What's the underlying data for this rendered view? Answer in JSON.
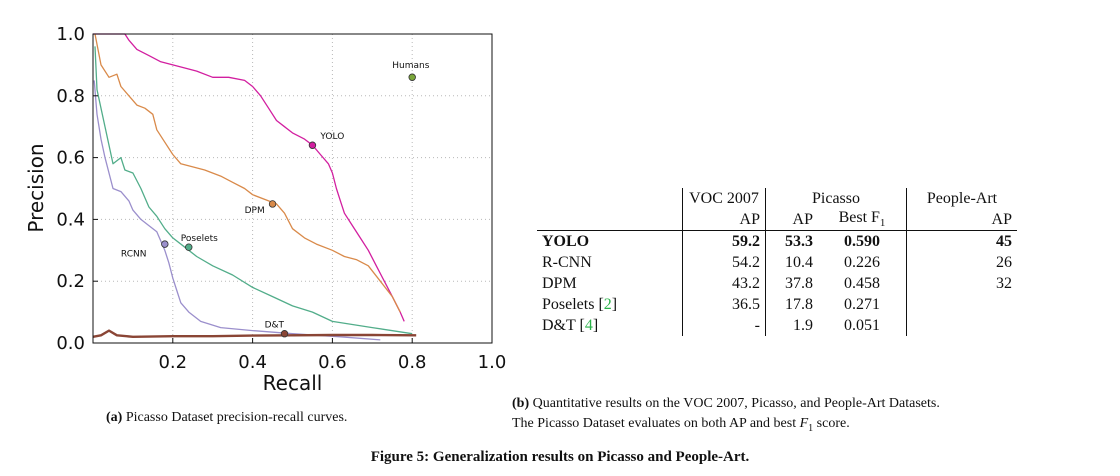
{
  "chart_data": {
    "type": "line",
    "title": "",
    "xlabel": "Recall",
    "ylabel": "Precision",
    "xlim": [
      0,
      1.0
    ],
    "ylim": [
      0,
      1.0
    ],
    "x_ticks": [
      "0.2",
      "0.4",
      "0.6",
      "0.8",
      "1.0"
    ],
    "x_tick_values": [
      0.2,
      0.4,
      0.6,
      0.8,
      1.0
    ],
    "y_ticks": [
      "0.0",
      "0.2",
      "0.4",
      "0.6",
      "0.8",
      "1.0"
    ],
    "y_tick_values": [
      0.0,
      0.2,
      0.4,
      0.6,
      0.8,
      1.0
    ],
    "grid": true,
    "series": [
      {
        "name": "YOLO",
        "color": "#d21fa0",
        "points": [
          [
            0.0,
            1.0
          ],
          [
            0.03,
            1.0
          ],
          [
            0.05,
            1.0
          ],
          [
            0.08,
            1.0
          ],
          [
            0.09,
            0.98
          ],
          [
            0.11,
            0.95
          ],
          [
            0.14,
            0.93
          ],
          [
            0.17,
            0.91
          ],
          [
            0.2,
            0.9
          ],
          [
            0.23,
            0.89
          ],
          [
            0.26,
            0.88
          ],
          [
            0.3,
            0.86
          ],
          [
            0.34,
            0.86
          ],
          [
            0.38,
            0.85
          ],
          [
            0.4,
            0.83
          ],
          [
            0.42,
            0.8
          ],
          [
            0.44,
            0.76
          ],
          [
            0.46,
            0.72
          ],
          [
            0.48,
            0.7
          ],
          [
            0.5,
            0.68
          ],
          [
            0.53,
            0.66
          ],
          [
            0.55,
            0.64
          ],
          [
            0.57,
            0.61
          ],
          [
            0.59,
            0.58
          ],
          [
            0.6,
            0.55
          ],
          [
            0.61,
            0.5
          ],
          [
            0.62,
            0.46
          ],
          [
            0.63,
            0.42
          ],
          [
            0.65,
            0.38
          ],
          [
            0.67,
            0.34
          ],
          [
            0.69,
            0.3
          ],
          [
            0.71,
            0.25
          ],
          [
            0.73,
            0.2
          ],
          [
            0.75,
            0.15
          ],
          [
            0.77,
            0.1
          ],
          [
            0.78,
            0.07
          ]
        ],
        "marker": [
          0.55,
          0.64
        ],
        "label_pos": [
          0.57,
          0.66
        ]
      },
      {
        "name": "DPM",
        "color": "#d98a4a",
        "points": [
          [
            0.005,
            1.0
          ],
          [
            0.02,
            0.9
          ],
          [
            0.04,
            0.86
          ],
          [
            0.06,
            0.87
          ],
          [
            0.07,
            0.83
          ],
          [
            0.09,
            0.8
          ],
          [
            0.11,
            0.77
          ],
          [
            0.13,
            0.76
          ],
          [
            0.15,
            0.74
          ],
          [
            0.16,
            0.69
          ],
          [
            0.18,
            0.65
          ],
          [
            0.2,
            0.61
          ],
          [
            0.22,
            0.58
          ],
          [
            0.25,
            0.57
          ],
          [
            0.28,
            0.56
          ],
          [
            0.32,
            0.54
          ],
          [
            0.35,
            0.52
          ],
          [
            0.38,
            0.5
          ],
          [
            0.4,
            0.48
          ],
          [
            0.44,
            0.46
          ],
          [
            0.46,
            0.45
          ],
          [
            0.48,
            0.42
          ],
          [
            0.5,
            0.37
          ],
          [
            0.53,
            0.34
          ],
          [
            0.56,
            0.32
          ],
          [
            0.6,
            0.3
          ],
          [
            0.63,
            0.28
          ],
          [
            0.66,
            0.27
          ],
          [
            0.69,
            0.25
          ],
          [
            0.72,
            0.2
          ],
          [
            0.75,
            0.15
          ],
          [
            0.77,
            0.1
          ]
        ],
        "marker": [
          0.45,
          0.45
        ],
        "label_pos": [
          0.38,
          0.42
        ]
      },
      {
        "name": "Poselets",
        "color": "#52ad8a",
        "points": [
          [
            0.005,
            0.96
          ],
          [
            0.01,
            0.82
          ],
          [
            0.02,
            0.76
          ],
          [
            0.03,
            0.7
          ],
          [
            0.04,
            0.64
          ],
          [
            0.05,
            0.58
          ],
          [
            0.07,
            0.6
          ],
          [
            0.08,
            0.56
          ],
          [
            0.1,
            0.55
          ],
          [
            0.12,
            0.5
          ],
          [
            0.14,
            0.44
          ],
          [
            0.16,
            0.41
          ],
          [
            0.18,
            0.37
          ],
          [
            0.2,
            0.34
          ],
          [
            0.23,
            0.31
          ],
          [
            0.26,
            0.28
          ],
          [
            0.3,
            0.25
          ],
          [
            0.35,
            0.22
          ],
          [
            0.4,
            0.18
          ],
          [
            0.45,
            0.15
          ],
          [
            0.5,
            0.12
          ],
          [
            0.55,
            0.1
          ],
          [
            0.6,
            0.07
          ],
          [
            0.7,
            0.05
          ],
          [
            0.8,
            0.03
          ]
        ],
        "marker": [
          0.24,
          0.31
        ],
        "label_pos": [
          0.22,
          0.33
        ]
      },
      {
        "name": "RCNN",
        "color": "#9b8fcc",
        "points": [
          [
            0.003,
            0.85
          ],
          [
            0.01,
            0.74
          ],
          [
            0.02,
            0.66
          ],
          [
            0.03,
            0.6
          ],
          [
            0.05,
            0.5
          ],
          [
            0.07,
            0.49
          ],
          [
            0.09,
            0.46
          ],
          [
            0.1,
            0.43
          ],
          [
            0.12,
            0.4
          ],
          [
            0.14,
            0.38
          ],
          [
            0.16,
            0.36
          ],
          [
            0.17,
            0.33
          ],
          [
            0.18,
            0.3
          ],
          [
            0.19,
            0.26
          ],
          [
            0.2,
            0.21
          ],
          [
            0.21,
            0.17
          ],
          [
            0.22,
            0.13
          ],
          [
            0.24,
            0.1
          ],
          [
            0.27,
            0.07
          ],
          [
            0.32,
            0.05
          ],
          [
            0.4,
            0.04
          ],
          [
            0.5,
            0.03
          ],
          [
            0.62,
            0.02
          ],
          [
            0.72,
            0.01
          ]
        ],
        "marker": [
          0.18,
          0.32
        ],
        "label_pos": [
          0.07,
          0.28
        ]
      },
      {
        "name": "D&T",
        "color": "#8a4535",
        "points": [
          [
            0.0,
            0.02
          ],
          [
            0.02,
            0.025
          ],
          [
            0.04,
            0.04
          ],
          [
            0.06,
            0.025
          ],
          [
            0.1,
            0.02
          ],
          [
            0.2,
            0.022
          ],
          [
            0.3,
            0.022
          ],
          [
            0.4,
            0.024
          ],
          [
            0.5,
            0.025
          ],
          [
            0.6,
            0.026
          ],
          [
            0.7,
            0.026
          ],
          [
            0.81,
            0.025
          ]
        ],
        "marker": [
          0.48,
          0.03
        ],
        "label_pos": [
          0.43,
          0.05
        ]
      },
      {
        "name": "Humans",
        "color": "#7aa63a",
        "points": [],
        "marker": [
          0.8,
          0.86
        ],
        "label_pos": [
          0.75,
          0.89
        ]
      }
    ]
  },
  "caption_a": {
    "label": "(a)",
    "text": "Picasso Dataset precision-recall curves."
  },
  "table": {
    "header1": {
      "voc": "VOC 2007",
      "picasso": "Picasso",
      "people_art": "People-Art"
    },
    "header2": {
      "voc_ap": "AP",
      "picasso_ap": "AP",
      "picasso_f1": "Best F",
      "picasso_f1_sub": "1",
      "people_ap": "AP"
    },
    "rows": [
      {
        "method": "YOLO",
        "cite": "",
        "voc_ap": "59.2",
        "picasso_ap": "53.3",
        "best_f1": "0.590",
        "people_ap": "45"
      },
      {
        "method": "R-CNN",
        "cite": "",
        "voc_ap": "54.2",
        "picasso_ap": "10.4",
        "best_f1": "0.226",
        "people_ap": "26"
      },
      {
        "method": "DPM",
        "cite": "",
        "voc_ap": "43.2",
        "picasso_ap": "37.8",
        "best_f1": "0.458",
        "people_ap": "32"
      },
      {
        "method": "Poselets [",
        "cite": "2",
        "voc_ap": "36.5",
        "picasso_ap": "17.8",
        "best_f1": "0.271",
        "people_ap": ""
      },
      {
        "method": "D&T [",
        "cite": "4",
        "voc_ap": "-",
        "picasso_ap": "1.9",
        "best_f1": "0.051",
        "people_ap": ""
      }
    ]
  },
  "caption_b": {
    "label": "(b)",
    "line1": "Quantitative results on the VOC 2007, Picasso, and People-Art Datasets.",
    "line2_a": "The Picasso Dataset evaluates on both AP and best ",
    "line2_f": "F",
    "line2_sub": "1",
    "line2_b": " score."
  },
  "figure_title": "Figure 5: Generalization results on Picasso and People-Art."
}
